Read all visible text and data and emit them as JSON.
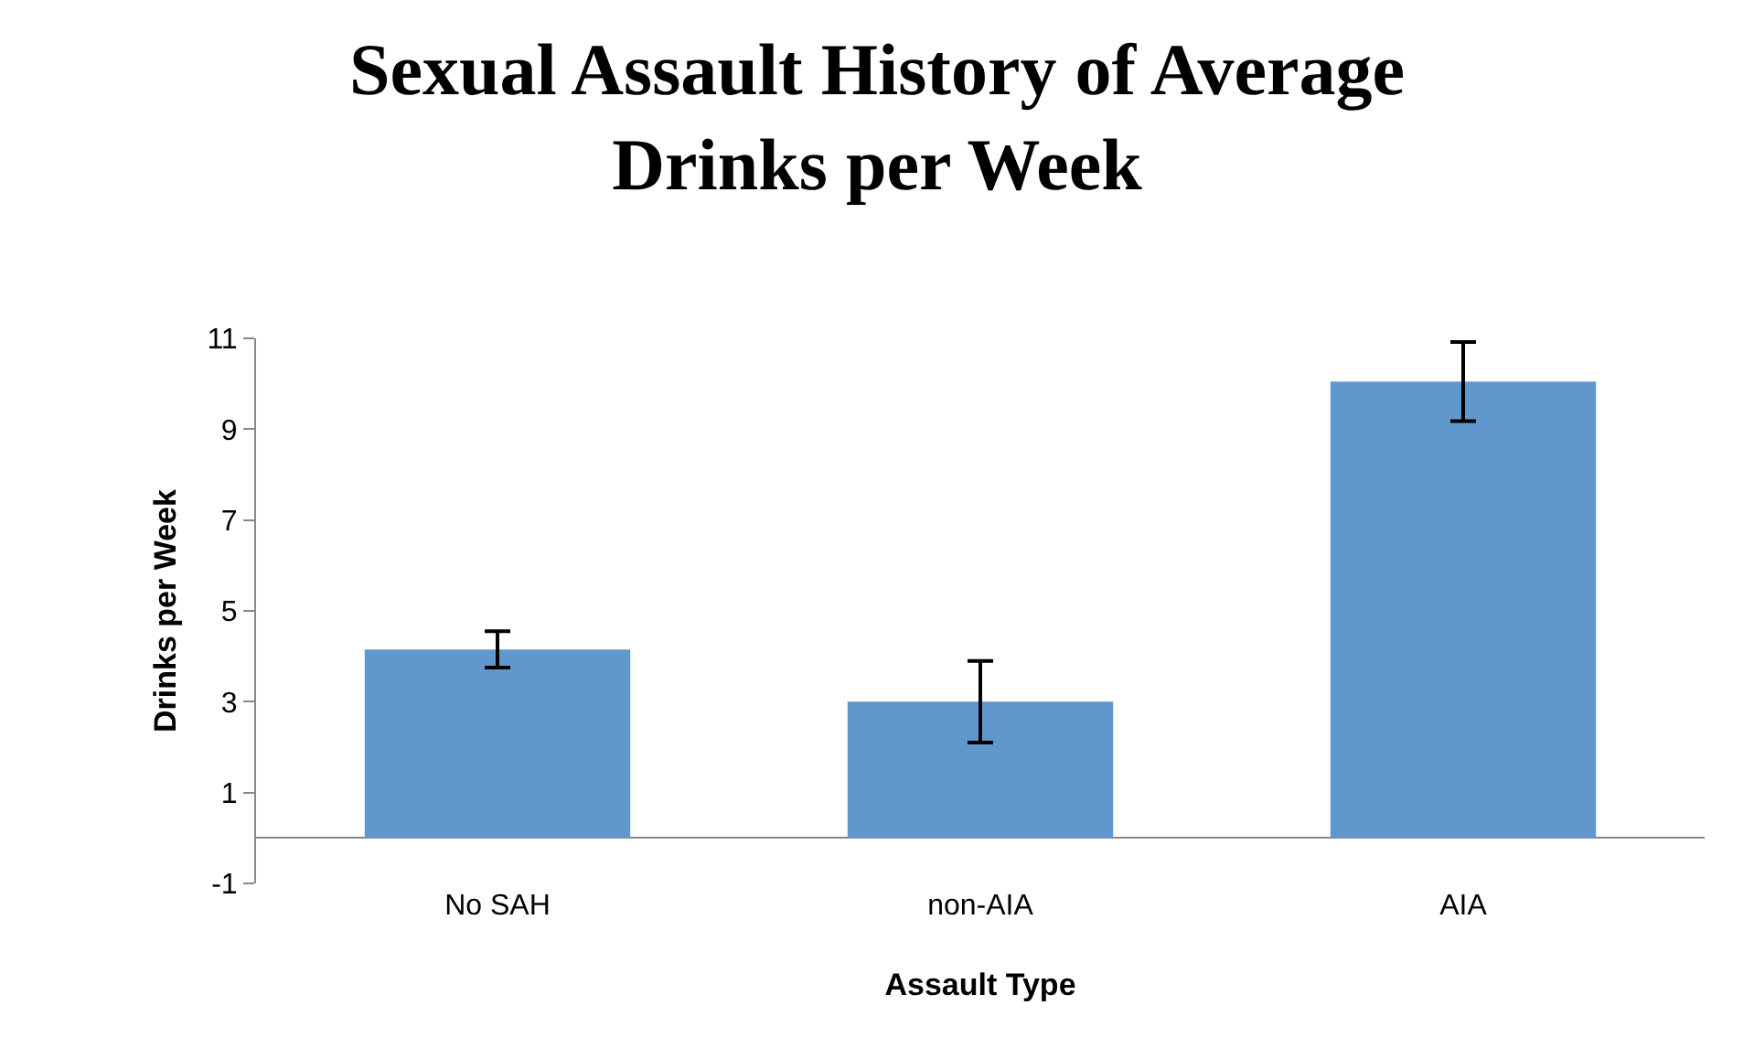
{
  "chart_data": {
    "type": "bar",
    "title": "Sexual Assault History of Average Drinks per Week",
    "xlabel": "Assault Type",
    "ylabel": "Drinks per Week",
    "categories": [
      "No SAH",
      "non-AIA",
      "AIA"
    ],
    "values": [
      4.15,
      3.0,
      10.05
    ],
    "errors": [
      0.4,
      0.9,
      0.87
    ],
    "color": "#6098cd",
    "ylim": [
      -1,
      11
    ],
    "yticks": [
      -1,
      1,
      3,
      5,
      7,
      9,
      11
    ],
    "grid": false,
    "legend": false
  }
}
